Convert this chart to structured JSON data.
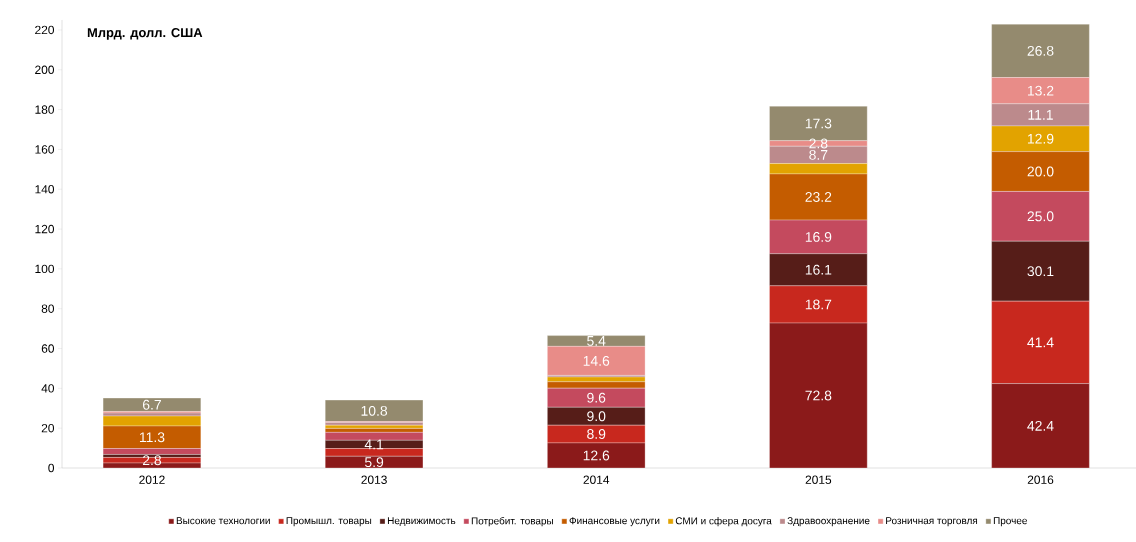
{
  "chart_data": {
    "type": "bar",
    "stacked": true,
    "title": "**Млрд. долл. США**",
    "categories": [
      "2012",
      "2013",
      "2014",
      "2015",
      "2016"
    ],
    "ylim": [
      0,
      225
    ],
    "yticks": [
      0,
      20,
      40,
      60,
      80,
      100,
      120,
      140,
      160,
      180,
      200,
      220
    ],
    "grid": false,
    "legend": "bottom",
    "series": [
      {
        "name": "Высокие технологии",
        "color": "#8b1a1a",
        "values": [
          2.5,
          5.9,
          12.6,
          72.8,
          42.4
        ],
        "value_labels": [
          null,
          "5.9",
          "12.6",
          "72.8",
          "42.4"
        ]
      },
      {
        "name": "Промышл. товары",
        "color": "#c8281e",
        "values": [
          2.8,
          3.9,
          8.9,
          18.7,
          41.4
        ],
        "value_labels": [
          "2.8",
          null,
          "8.9",
          "18.7",
          "41.4"
        ]
      },
      {
        "name": "Недвижимость",
        "color": "#561d18",
        "values": [
          1.5,
          4.1,
          9.0,
          16.1,
          30.1
        ],
        "value_labels": [
          null,
          "4.1",
          "9.0",
          "16.1",
          "30.1"
        ]
      },
      {
        "name": "Потребит. товары",
        "color": "#c44a5e",
        "values": [
          3.0,
          4.0,
          9.6,
          16.9,
          25.0
        ],
        "value_labels": [
          null,
          null,
          "9.6",
          "16.9",
          "25.0"
        ]
      },
      {
        "name": "Финансовые услуги",
        "color": "#c45c00",
        "values": [
          11.3,
          2.0,
          3.2,
          23.2,
          20.0
        ],
        "value_labels": [
          "11.3",
          null,
          null,
          "23.2",
          "20.0"
        ]
      },
      {
        "name": "СМИ и сфера досуга",
        "color": "#e2a300",
        "values": [
          5.0,
          1.6,
          2.4,
          5.2,
          12.9
        ],
        "value_labels": [
          null,
          null,
          null,
          null,
          "12.9"
        ]
      },
      {
        "name": "Здравоохранение",
        "color": "#bc8a8c",
        "values": [
          1.5,
          1.3,
          0.8,
          8.7,
          11.1
        ],
        "value_labels": [
          null,
          null,
          null,
          "8.7",
          "11.1"
        ]
      },
      {
        "name": "Розничная торговля",
        "color": "#e88c88",
        "values": [
          0.8,
          0.5,
          14.6,
          2.8,
          13.2
        ],
        "value_labels": [
          null,
          null,
          "14.6",
          "2.8",
          "13.2"
        ]
      },
      {
        "name": "Прочее",
        "color": "#948a6e",
        "values": [
          6.7,
          10.8,
          5.4,
          17.3,
          26.8
        ],
        "value_labels": [
          "6.7",
          "10.8",
          "5.4",
          "17.3",
          "26.8"
        ]
      }
    ]
  }
}
